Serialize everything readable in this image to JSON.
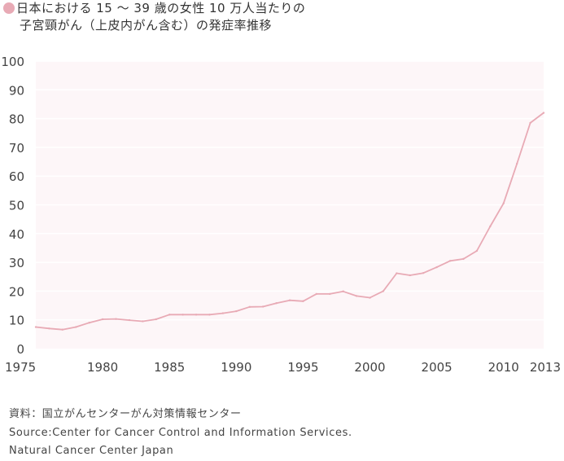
{
  "title": {
    "line1": "日本における 15 〜 39 歳の女性 10 万人当たりの",
    "line2": "子宮頸がん（上皮内がん含む）の発症率推移"
  },
  "colors": {
    "line": "#e8aab5",
    "bullet": "#e8aab5",
    "plot_background": "#fdf6f8",
    "grid": "#ffffff"
  },
  "source": {
    "line1": "資料：国立がんセンターがん対策情報センター",
    "line2": "Source:Center for Cancer Control and Information Services.",
    "line3": "Natural Cancer Center Japan"
  },
  "chart_data": {
    "type": "line",
    "x_ticks": [
      "1975",
      "1980",
      "1985",
      "1990",
      "1995",
      "2000",
      "2005",
      "2010",
      "2013"
    ],
    "y_ticks": [
      "0",
      "10",
      "20",
      "30",
      "40",
      "50",
      "60",
      "70",
      "80",
      "90",
      "100"
    ],
    "xlim": [
      1975,
      2013
    ],
    "ylim": [
      0,
      100
    ],
    "grid": true,
    "series": [
      {
        "x": [
          1975,
          1976,
          1977,
          1978,
          1979,
          1980,
          1981,
          1982,
          1983,
          1984,
          1985,
          1986,
          1987,
          1988,
          1989,
          1990,
          1991,
          1992,
          1993,
          1994,
          1995,
          1996,
          1997,
          1998,
          1999,
          2000,
          2001,
          2002,
          2003,
          2004,
          2005,
          2006,
          2007,
          2008,
          2009,
          2010,
          2011,
          2012,
          2013
        ],
        "values": [
          7.5,
          7.0,
          6.6,
          7.5,
          9.0,
          10.2,
          10.3,
          9.9,
          9.5,
          10.2,
          11.8,
          11.8,
          11.8,
          11.8,
          12.3,
          13.0,
          14.5,
          14.6,
          15.8,
          16.8,
          16.5,
          19.0,
          19.0,
          19.9,
          18.3,
          17.7,
          20.0,
          26.2,
          25.5,
          26.3,
          28.3,
          30.5,
          31.2,
          34.0,
          42.5,
          50.5,
          64.3,
          78.5,
          82.0
        ]
      }
    ]
  }
}
